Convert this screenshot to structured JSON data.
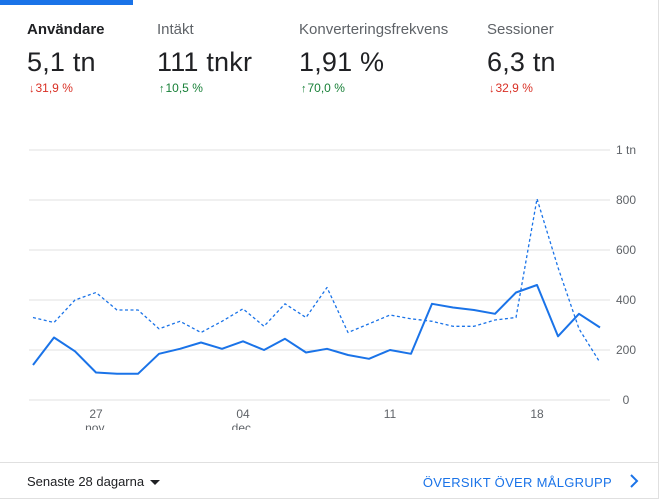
{
  "tabs": [
    {
      "label": "Användare",
      "value": "5,1 tn",
      "change": "31,9 %",
      "direction": "down",
      "active": true
    },
    {
      "label": "Intäkt",
      "value": "111 tnkr",
      "change": "10,5 %",
      "direction": "up",
      "active": false
    },
    {
      "label": "Konverteringsfrekvens",
      "value": "1,91 %",
      "change": "70,0 %",
      "direction": "up",
      "active": false
    },
    {
      "label": "Sessioner",
      "value": "6,3 tn",
      "change": "32,9 %",
      "direction": "down",
      "active": false
    }
  ],
  "icons": {
    "down": "arrow-down-icon",
    "up": "arrow-up-icon",
    "dropdown": "caret-down-icon",
    "link": "chevron-right-icon"
  },
  "colors": {
    "accent": "#1a73e8",
    "down": "#d93025",
    "up": "#188038",
    "grid": "#e0e0e0"
  },
  "chart_data": {
    "type": "line",
    "x_tick_labels": [
      {
        "day": 3,
        "line1": "27",
        "line2": "nov."
      },
      {
        "day": 10,
        "line1": "04",
        "line2": "dec."
      },
      {
        "day": 17,
        "line1": "11",
        "line2": ""
      },
      {
        "day": 24,
        "line1": "18",
        "line2": ""
      }
    ],
    "y_tick_labels": [
      "0",
      "200",
      "400",
      "600",
      "800",
      "1 tn"
    ],
    "ylim": [
      0,
      1000
    ],
    "grid": true,
    "series": [
      {
        "style": "solid",
        "values": [
          140,
          250,
          195,
          110,
          105,
          105,
          185,
          205,
          230,
          205,
          235,
          200,
          245,
          190,
          205,
          180,
          165,
          200,
          185,
          385,
          370,
          360,
          345,
          430,
          460,
          255,
          345,
          290
        ]
      },
      {
        "style": "dashed",
        "values": [
          330,
          310,
          400,
          430,
          360,
          360,
          285,
          315,
          270,
          315,
          365,
          295,
          385,
          330,
          450,
          270,
          305,
          340,
          325,
          315,
          295,
          295,
          320,
          330,
          805,
          530,
          285,
          150
        ]
      }
    ]
  },
  "footer": {
    "range_label": "Senaste 28 dagarna",
    "link_label": "ÖVERSIKT ÖVER MÅLGRUPP"
  }
}
